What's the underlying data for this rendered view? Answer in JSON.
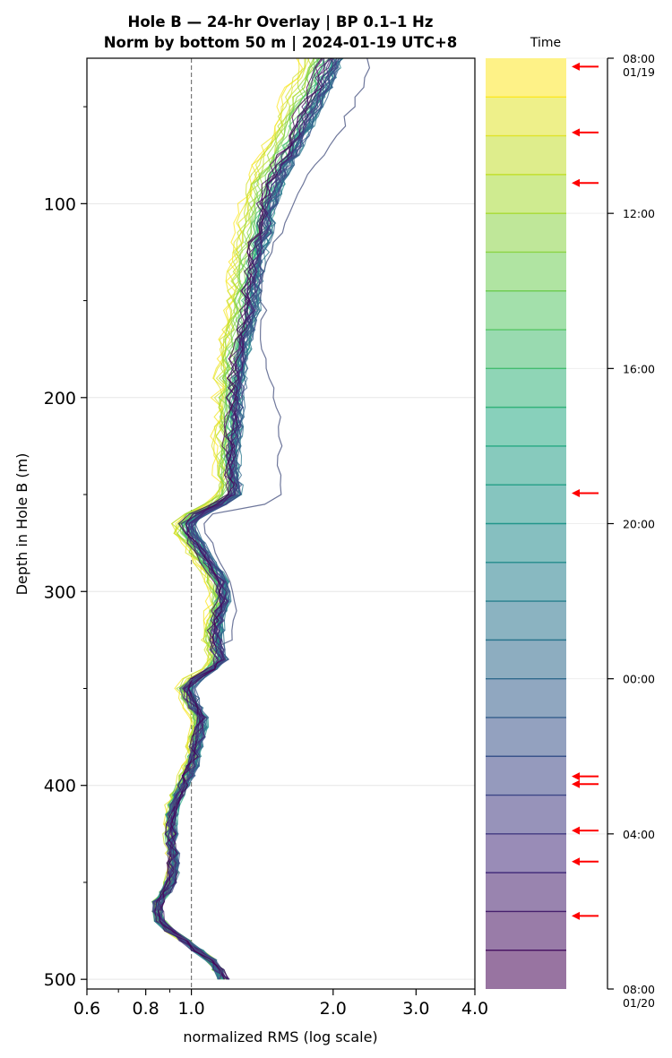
{
  "chart_data": {
    "type": "line",
    "title": "Hole B — 24-hr Overlay  |  BP 0.1–1 Hz",
    "subtitle": "Norm by bottom 50 m  |  2024-01-19 UTC+8",
    "xlabel": "normalized RMS  (log scale)",
    "ylabel": "Depth in Hole B (m)",
    "xscale": "log",
    "xlim": [
      0.6,
      4.0
    ],
    "ylim": [
      505,
      25
    ],
    "x_ticks": [
      "0.6",
      "0.8",
      "1.0",
      "2.0",
      "3.0",
      "4.0"
    ],
    "y_ticks": [
      "100",
      "200",
      "300",
      "400",
      "500"
    ],
    "reference_line_x": 1.0,
    "grid": "horizontal",
    "colormap": "viridis",
    "legend": {
      "title": "Time",
      "placement": "right",
      "tick_labels": [
        "08:00\n01/19",
        "12:00",
        "16:00",
        "20:00",
        "00:00",
        "04:00",
        "08:00\n01/20"
      ],
      "bands": 24,
      "arrow_color": "#ff0000",
      "arrow_hours": [
        0.1,
        1.8,
        3.1,
        11.1,
        18.4,
        18.6,
        19.8,
        20.6,
        22.0
      ]
    },
    "series_depth": [
      25,
      30,
      35,
      40,
      45,
      50,
      55,
      60,
      65,
      70,
      75,
      80,
      85,
      90,
      95,
      100,
      105,
      110,
      115,
      120,
      125,
      130,
      135,
      140,
      145,
      150,
      155,
      160,
      165,
      170,
      175,
      180,
      185,
      190,
      195,
      200,
      205,
      210,
      215,
      220,
      225,
      230,
      235,
      240,
      245,
      250,
      255,
      260,
      265,
      270,
      275,
      280,
      285,
      290,
      295,
      300,
      305,
      310,
      315,
      320,
      325,
      330,
      335,
      340,
      345,
      350,
      355,
      360,
      365,
      370,
      375,
      380,
      385,
      390,
      395,
      400,
      405,
      410,
      415,
      420,
      425,
      430,
      435,
      440,
      445,
      450,
      455,
      460,
      465,
      470,
      475,
      480,
      485,
      490,
      495,
      500
    ],
    "series_base": [
      1.84,
      1.81,
      1.77,
      1.74,
      1.7,
      1.67,
      1.63,
      1.6,
      1.57,
      1.53,
      1.5,
      1.46,
      1.43,
      1.4,
      1.38,
      1.36,
      1.35,
      1.34,
      1.33,
      1.31,
      1.3,
      1.29,
      1.28,
      1.27,
      1.27,
      1.26,
      1.26,
      1.25,
      1.24,
      1.22,
      1.21,
      1.2,
      1.2,
      1.19,
      1.19,
      1.18,
      1.18,
      1.18,
      1.18,
      1.17,
      1.17,
      1.17,
      1.17,
      1.17,
      1.18,
      1.18,
      1.1,
      1.0,
      0.95,
      0.96,
      0.99,
      1.02,
      1.05,
      1.09,
      1.12,
      1.13,
      1.13,
      1.12,
      1.11,
      1.1,
      1.1,
      1.11,
      1.13,
      1.08,
      1.0,
      0.96,
      0.98,
      1.0,
      1.03,
      1.03,
      1.02,
      1.01,
      1.0,
      0.99,
      0.97,
      0.95,
      0.93,
      0.91,
      0.9,
      0.9,
      0.9,
      0.9,
      0.91,
      0.91,
      0.91,
      0.9,
      0.88,
      0.85,
      0.85,
      0.86,
      0.9,
      0.97,
      1.03,
      1.1,
      1.14,
      1.17
    ],
    "series_count": 48,
    "outlier_series": {
      "hour": 23.5,
      "color": "#4a5582"
    }
  }
}
